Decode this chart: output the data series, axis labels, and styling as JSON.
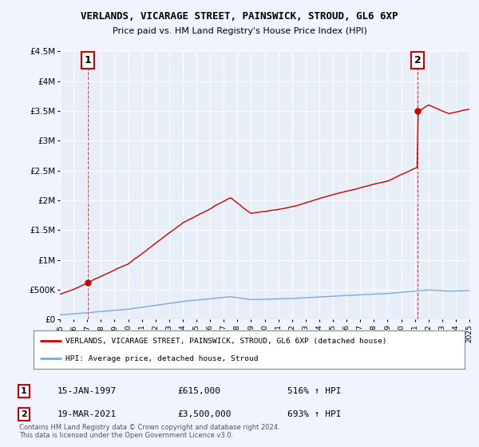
{
  "title": "VERLANDS, VICARAGE STREET, PAINSWICK, STROUD, GL6 6XP",
  "subtitle": "Price paid vs. HM Land Registry's House Price Index (HPI)",
  "legend_line1": "VERLANDS, VICARAGE STREET, PAINSWICK, STROUD, GL6 6XP (detached house)",
  "legend_line2": "HPI: Average price, detached house, Stroud",
  "annotation1_label": "1",
  "annotation1_date": "15-JAN-1997",
  "annotation1_price": "£615,000",
  "annotation1_hpi": "516% ↑ HPI",
  "annotation2_label": "2",
  "annotation2_date": "19-MAR-2021",
  "annotation2_price": "£3,500,000",
  "annotation2_hpi": "693% ↑ HPI",
  "footer": "Contains HM Land Registry data © Crown copyright and database right 2024.\nThis data is licensed under the Open Government Licence v3.0.",
  "hpi_color": "#7aaadd",
  "price_color": "#cc0000",
  "marker_color": "#cc0000",
  "annotation_box_color": "#cc0000",
  "background_color": "#f0f4ff",
  "plot_bg_color": "#e8eef8",
  "ylim": [
    0,
    4500000
  ],
  "yticks": [
    0,
    500000,
    1000000,
    1500000,
    2000000,
    2500000,
    3000000,
    3500000,
    4000000,
    4500000
  ],
  "ytick_labels": [
    "£0",
    "£500K",
    "£1M",
    "£1.5M",
    "£2M",
    "£2.5M",
    "£3M",
    "£3.5M",
    "£4M",
    "£4.5M"
  ],
  "sale1_x": 1997.04,
  "sale1_y": 615000,
  "sale2_x": 2021.21,
  "sale2_y": 3500000,
  "xmin": 1995,
  "xmax": 2025
}
